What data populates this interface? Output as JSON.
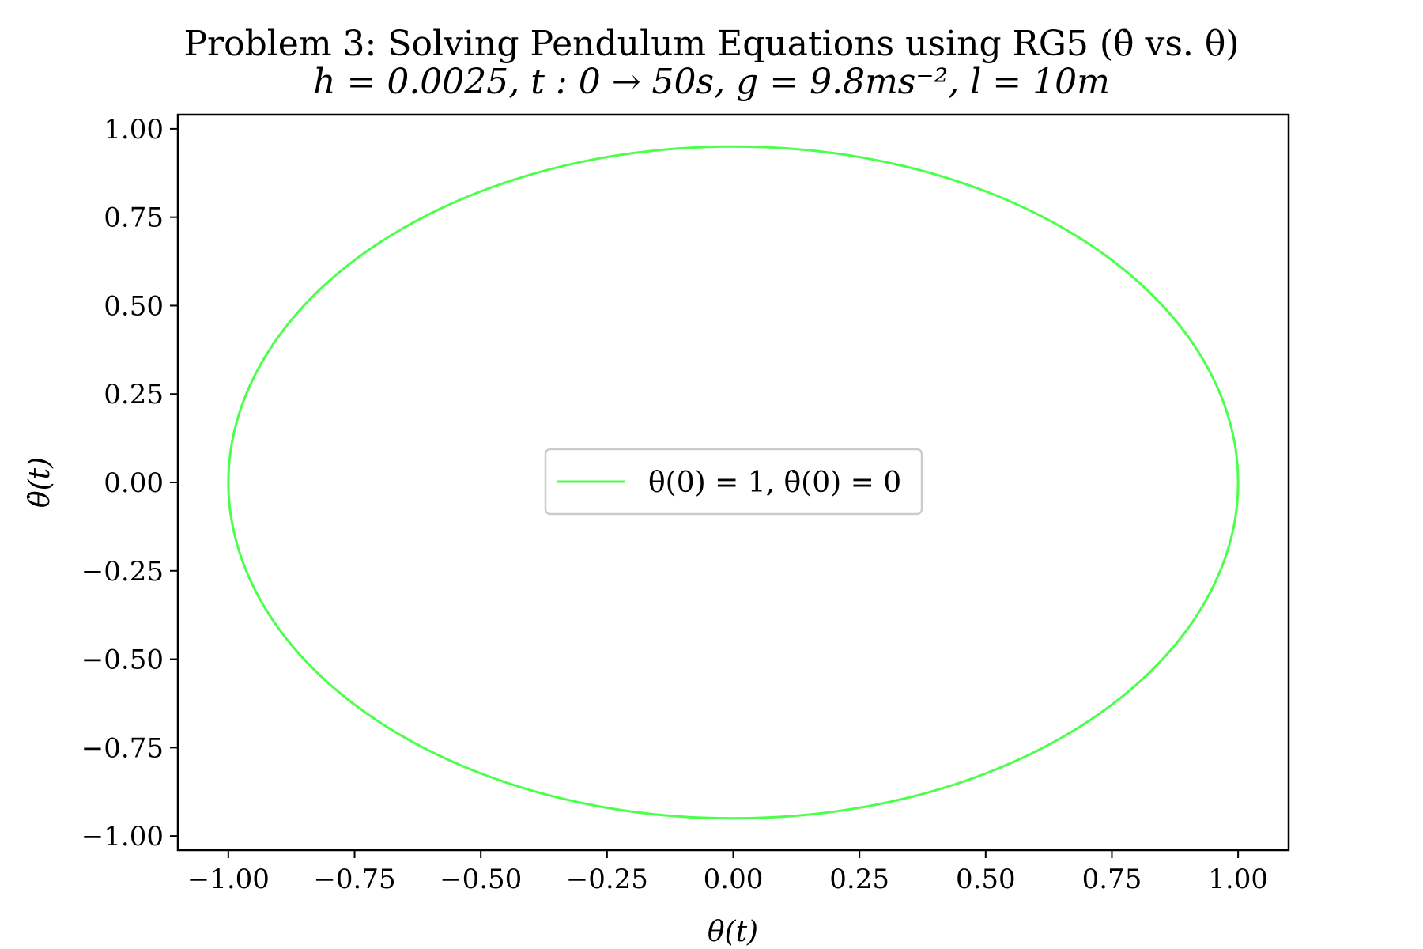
{
  "chart_data": {
    "type": "line",
    "title": "Problem 3: Solving Pendulum Equations using RG5 (θ̇ vs. θ)",
    "subtitle": "h = 0.0025, t : 0 → 50s, g = 9.8ms⁻², l = 10m",
    "xlabel": "θ(t)",
    "ylabel": "θ̇(t)",
    "xlim": [
      -1.1,
      1.1
    ],
    "ylim": [
      -1.04,
      1.04
    ],
    "xticks": [
      -1.0,
      -0.75,
      -0.5,
      -0.25,
      0.0,
      0.25,
      0.5,
      0.75,
      1.0
    ],
    "xtick_labels": [
      "−1.00",
      "−0.75",
      "−0.50",
      "−0.25",
      "0.00",
      "0.25",
      "0.50",
      "0.75",
      "1.00"
    ],
    "yticks": [
      1.0,
      0.75,
      0.5,
      0.25,
      0.0,
      -0.25,
      -0.5,
      -0.75,
      -1.0
    ],
    "ytick_labels": [
      "1.00",
      "0.75",
      "0.50",
      "0.25",
      "0.00",
      "−0.25",
      "−0.50",
      "−0.75",
      "−1.00"
    ],
    "grid": false,
    "legend_position": "center",
    "series": [
      {
        "name": "θ(0) = 1, θ̇(0) = 0",
        "color": "#4cff4c",
        "shape": "closed orbit",
        "x": [
          1.0,
          0.966,
          0.866,
          0.707,
          0.5,
          0.259,
          0.0,
          -0.259,
          -0.5,
          -0.707,
          -0.866,
          -0.966,
          -1.0,
          -0.966,
          -0.866,
          -0.707,
          -0.5,
          -0.259,
          0.0,
          0.259,
          0.5,
          0.707,
          0.866,
          0.966,
          1.0
        ],
        "y": [
          0.0,
          0.245,
          0.475,
          0.672,
          0.823,
          0.918,
          0.95,
          0.918,
          0.823,
          0.672,
          0.475,
          0.245,
          0.0,
          -0.245,
          -0.475,
          -0.672,
          -0.823,
          -0.918,
          -0.95,
          -0.918,
          -0.823,
          -0.672,
          -0.475,
          -0.245,
          0.0
        ]
      }
    ]
  }
}
